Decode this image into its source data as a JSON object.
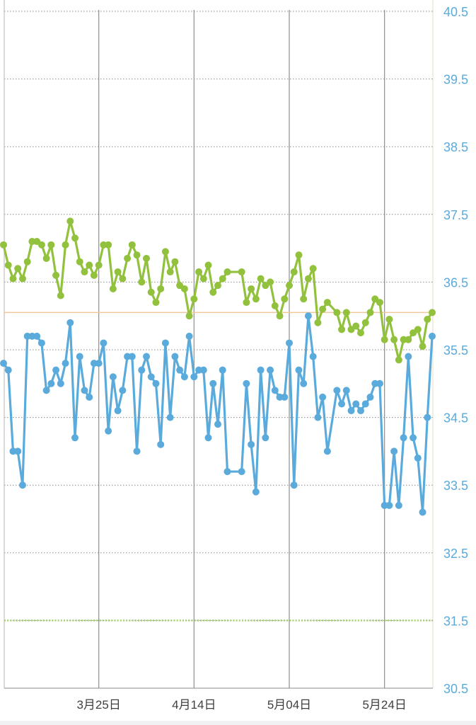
{
  "colors": {
    "green": "#92c13e",
    "blue": "#5aabdc",
    "axis_label": "#5aabdc",
    "x_label": "#3f3f3f",
    "grid": "#8a8a8a",
    "orange_line": "#f2c79b",
    "baseline_green": "#a5cf70",
    "vertical": "#8e8e8e"
  },
  "chart_data": {
    "type": "line",
    "ylim": [
      30.5,
      40.5
    ],
    "yticks": [
      "40.5",
      "39.5",
      "38.5",
      "37.5",
      "36.5",
      "35.5",
      "34.5",
      "33.5",
      "32.5",
      "31.5",
      "30.5"
    ],
    "ytick_values": [
      40.5,
      39.5,
      38.5,
      37.5,
      36.5,
      35.5,
      34.5,
      33.5,
      32.5,
      31.5,
      30.5
    ],
    "xlim_days": [
      0,
      90
    ],
    "xticks": [
      {
        "label": "3月25日",
        "day": 20
      },
      {
        "label": "4月14日",
        "day": 40
      },
      {
        "label": "5月04日",
        "day": 60
      },
      {
        "label": "5月24日",
        "day": 80
      }
    ],
    "reference_lines": [
      {
        "name": "",
        "value": 36.05
      },
      {
        "name": "",
        "value": 31.5
      }
    ],
    "series": [
      {
        "name": "",
        "color": "#92c13e",
        "points": [
          [
            0,
            37.05
          ],
          [
            1,
            36.75
          ],
          [
            2,
            36.55
          ],
          [
            3,
            36.7
          ],
          [
            4,
            36.55
          ],
          [
            5,
            36.8
          ],
          [
            6,
            37.1
          ],
          [
            7,
            37.1
          ],
          [
            8,
            37.05
          ],
          [
            9,
            36.85
          ],
          [
            10,
            37.05
          ],
          [
            11,
            36.6
          ],
          [
            12,
            36.3
          ],
          [
            13,
            37.05
          ],
          [
            14,
            37.4
          ],
          [
            15,
            37.15
          ],
          [
            16,
            36.8
          ],
          [
            17,
            36.65
          ],
          [
            18,
            36.75
          ],
          [
            19,
            36.6
          ],
          [
            20,
            36.75
          ],
          [
            21,
            37.05
          ],
          [
            22,
            37.05
          ],
          [
            23,
            36.4
          ],
          [
            24,
            36.65
          ],
          [
            25,
            36.55
          ],
          [
            26,
            36.85
          ],
          [
            27,
            37.05
          ],
          [
            28,
            36.9
          ],
          [
            29,
            36.5
          ],
          [
            30,
            36.85
          ],
          [
            31,
            36.35
          ],
          [
            32,
            36.2
          ],
          [
            33,
            36.4
          ],
          [
            34,
            36.95
          ],
          [
            35,
            36.65
          ],
          [
            36,
            36.8
          ],
          [
            37,
            36.45
          ],
          [
            38,
            36.4
          ],
          [
            39,
            36.0
          ],
          [
            40,
            36.25
          ],
          [
            41,
            36.65
          ],
          [
            42,
            36.55
          ],
          [
            43,
            36.75
          ],
          [
            44,
            36.35
          ],
          [
            45,
            36.45
          ],
          [
            46,
            36.55
          ],
          [
            47,
            36.65
          ],
          [
            50,
            36.65
          ],
          [
            51,
            36.2
          ],
          [
            52,
            36.4
          ],
          [
            53,
            36.25
          ],
          [
            54,
            36.55
          ],
          [
            55,
            36.45
          ],
          [
            56,
            36.5
          ],
          [
            57,
            36.15
          ],
          [
            58,
            36.0
          ],
          [
            59,
            36.25
          ],
          [
            60,
            36.45
          ],
          [
            61,
            36.65
          ],
          [
            62,
            36.9
          ],
          [
            63,
            36.25
          ],
          [
            64,
            36.55
          ],
          [
            65,
            36.7
          ],
          [
            66,
            35.9
          ],
          [
            67,
            36.1
          ],
          [
            68,
            36.2
          ],
          [
            70,
            36.05
          ],
          [
            71,
            35.8
          ],
          [
            72,
            36.05
          ],
          [
            73,
            35.8
          ],
          [
            74,
            35.85
          ],
          [
            75,
            35.75
          ],
          [
            76,
            35.9
          ],
          [
            77,
            36.05
          ],
          [
            78,
            36.25
          ],
          [
            79,
            36.2
          ],
          [
            80,
            35.65
          ],
          [
            81,
            35.95
          ],
          [
            82,
            35.65
          ],
          [
            83,
            35.35
          ],
          [
            84,
            35.65
          ],
          [
            85,
            35.65
          ],
          [
            86,
            35.75
          ],
          [
            87,
            35.8
          ],
          [
            88,
            35.55
          ],
          [
            89,
            35.95
          ],
          [
            90,
            36.05
          ]
        ]
      },
      {
        "name": "",
        "color": "#5aabdc",
        "points": [
          [
            0,
            35.3
          ],
          [
            1,
            35.2
          ],
          [
            2,
            34.0
          ],
          [
            3,
            34.0
          ],
          [
            4,
            33.5
          ],
          [
            5,
            35.7
          ],
          [
            6,
            35.7
          ],
          [
            7,
            35.7
          ],
          [
            8,
            35.6
          ],
          [
            9,
            34.9
          ],
          [
            10,
            35.0
          ],
          [
            11,
            35.2
          ],
          [
            12,
            35.0
          ],
          [
            13,
            35.3
          ],
          [
            14,
            35.9
          ],
          [
            15,
            34.2
          ],
          [
            16,
            35.4
          ],
          [
            17,
            34.9
          ],
          [
            18,
            34.8
          ],
          [
            19,
            35.3
          ],
          [
            20,
            35.3
          ],
          [
            21,
            35.6
          ],
          [
            22,
            34.3
          ],
          [
            23,
            35.1
          ],
          [
            24,
            34.6
          ],
          [
            25,
            34.9
          ],
          [
            26,
            35.4
          ],
          [
            27,
            35.4
          ],
          [
            28,
            34.0
          ],
          [
            29,
            35.2
          ],
          [
            30,
            35.4
          ],
          [
            31,
            35.1
          ],
          [
            32,
            35.0
          ],
          [
            33,
            34.1
          ],
          [
            34,
            35.6
          ],
          [
            35,
            34.5
          ],
          [
            36,
            35.4
          ],
          [
            37,
            35.2
          ],
          [
            38,
            35.1
          ],
          [
            39,
            35.7
          ],
          [
            40,
            35.1
          ],
          [
            41,
            35.2
          ],
          [
            42,
            35.2
          ],
          [
            43,
            34.2
          ],
          [
            44,
            35.0
          ],
          [
            45,
            34.4
          ],
          [
            46,
            35.2
          ],
          [
            47,
            33.7
          ],
          [
            50,
            33.7
          ],
          [
            51,
            35.0
          ],
          [
            52,
            34.1
          ],
          [
            53,
            33.4
          ],
          [
            54,
            35.2
          ],
          [
            55,
            34.2
          ],
          [
            56,
            35.2
          ],
          [
            57,
            34.9
          ],
          [
            58,
            34.8
          ],
          [
            59,
            34.8
          ],
          [
            60,
            35.6
          ],
          [
            61,
            33.5
          ],
          [
            62,
            35.2
          ],
          [
            63,
            35.0
          ],
          [
            64,
            36.0
          ],
          [
            65,
            35.4
          ],
          [
            66,
            34.5
          ],
          [
            67,
            34.8
          ],
          [
            68,
            34.0
          ],
          [
            70,
            34.9
          ],
          [
            71,
            34.7
          ],
          [
            72,
            34.9
          ],
          [
            73,
            34.6
          ],
          [
            74,
            34.7
          ],
          [
            75,
            34.6
          ],
          [
            76,
            34.7
          ],
          [
            77,
            34.8
          ],
          [
            78,
            35.0
          ],
          [
            79,
            35.0
          ],
          [
            80,
            33.2
          ],
          [
            81,
            33.2
          ],
          [
            82,
            34.0
          ],
          [
            83,
            33.2
          ],
          [
            84,
            34.2
          ],
          [
            85,
            35.4
          ],
          [
            86,
            34.2
          ],
          [
            87,
            33.9
          ],
          [
            88,
            33.1
          ],
          [
            89,
            34.5
          ],
          [
            90,
            35.7
          ]
        ]
      }
    ]
  }
}
